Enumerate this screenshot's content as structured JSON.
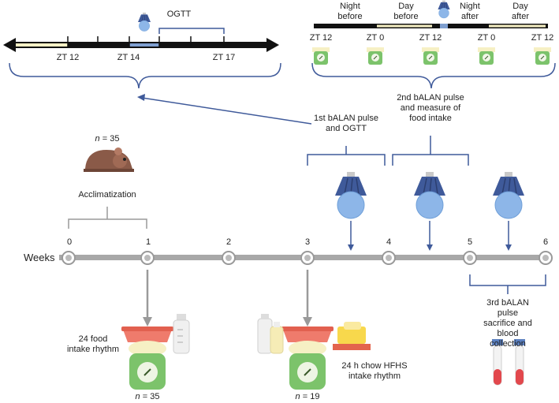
{
  "top_left": {
    "ogtt_label": "OGTT",
    "ticks": [
      "ZT 12",
      "ZT 14",
      "ZT 17"
    ]
  },
  "top_right": {
    "headers": [
      "Night\nbefore",
      "Day\nbefore",
      "Night\nafter",
      "Day\nafter"
    ],
    "ticks": [
      "ZT 12",
      "ZT 0",
      "ZT 12",
      "ZT 0",
      "ZT 12"
    ]
  },
  "timeline": {
    "axis_label": "Weeks",
    "weeks": [
      "0",
      "1",
      "2",
      "3",
      "4",
      "5",
      "6"
    ]
  },
  "annotations": {
    "n_start": "= 35",
    "n_italic": "n",
    "acclimatization": "Acclimatization",
    "pulse1": "1st bALAN pulse\nand OGTT",
    "pulse2": "2nd bALAN pulse\nand measure of\nfood intake",
    "pulse3": "3rd bALAN pulse\nsacrifice and blood\ncollection",
    "food_rhythm": "24 food\nintake rhythm",
    "n_week1": "= 35",
    "hfhs_rhythm": "24 h chow HFHS\nintake rhythm",
    "n_week3": "= 19"
  },
  "colors": {
    "bracket": "#3f5a9a",
    "gray_bracket": "#9a9a9a",
    "axis": "#a8a8a8",
    "timeline_black": "#111111",
    "cream": "#f6f0c4",
    "blue_bulb": "#6f9fd8",
    "scale_green": "#7cc36b",
    "bowl_red": "#ef7b6c"
  }
}
